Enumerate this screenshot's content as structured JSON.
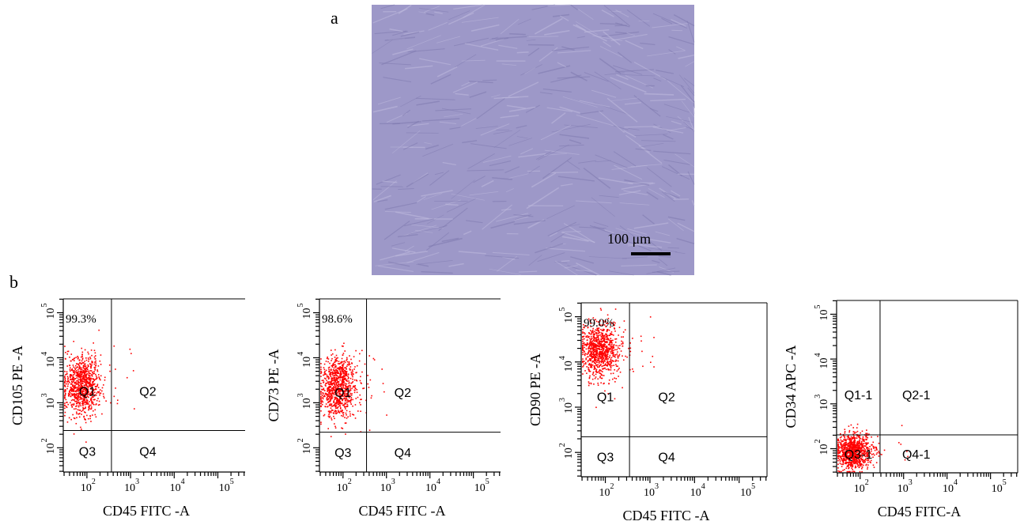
{
  "panel_a": {
    "label": "a",
    "scale_bar": "100 μm"
  },
  "panel_b": {
    "label": "b",
    "tick_base": "10",
    "plots": [
      {
        "y_label": "CD105 PE -A",
        "x_label": "CD45 FITC -A",
        "percent": "99.3%",
        "quadrants": [
          "Q1",
          "Q2",
          "Q3",
          "Q4"
        ],
        "x_ticks": [
          "2",
          "3",
          "4",
          "5"
        ],
        "y_ticks": [
          "2",
          "3",
          "4",
          "5"
        ]
      },
      {
        "y_label": "CD73 PE -A",
        "x_label": "CD45 FITC -A",
        "percent": "98.6%",
        "quadrants": [
          "Q1",
          "Q2",
          "Q3",
          "Q4"
        ],
        "x_ticks": [
          "2",
          "3",
          "4",
          "5"
        ],
        "y_ticks": [
          "2",
          "3",
          "4",
          "5"
        ]
      },
      {
        "y_label": "CD90 PE -A",
        "x_label": "CD45 FITC -A",
        "percent": "99.0%",
        "quadrants": [
          "Q1",
          "Q2",
          "Q3",
          "Q4"
        ],
        "x_ticks": [
          "2",
          "3",
          "4",
          "5"
        ],
        "y_ticks": [
          "2",
          "3",
          "4",
          "5"
        ]
      },
      {
        "y_label": "CD34 APC -A",
        "x_label": "CD45  FITC-A",
        "quadrants": [
          "Q1-1",
          "Q2-1",
          "Q3-1",
          "Q4-1"
        ],
        "x_ticks": [
          "2",
          "3",
          "4",
          "5"
        ],
        "y_ticks": [
          "2",
          "3",
          "4",
          "5"
        ]
      }
    ]
  }
}
